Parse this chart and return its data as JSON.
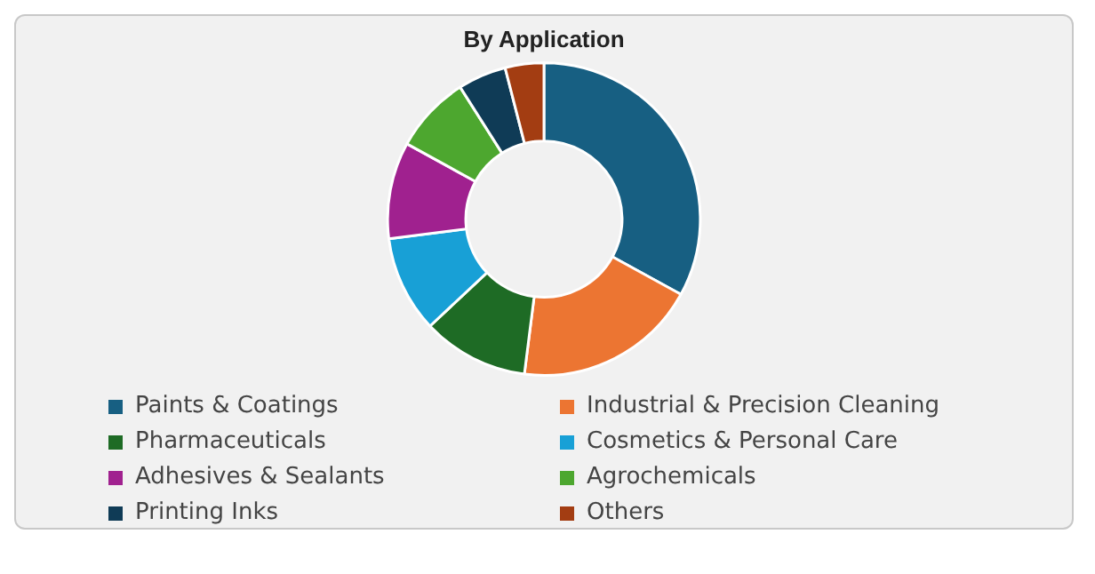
{
  "chart_data": {
    "type": "donut",
    "title": "By Application",
    "categories": [
      "Paints & Coatings",
      "Industrial & Precision Cleaning",
      "Pharmaceuticals",
      "Cosmetics & Personal Care",
      "Adhesives & Sealants",
      "Agrochemicals",
      "Printing Inks",
      "Others"
    ],
    "values": [
      33,
      19,
      11,
      10,
      10,
      8,
      5,
      4
    ],
    "colors": [
      "#175f82",
      "#ec7532",
      "#1e6b25",
      "#18a0d6",
      "#a0218f",
      "#4da72f",
      "#0f3b56",
      "#a33d12"
    ],
    "legend": "bottom"
  }
}
